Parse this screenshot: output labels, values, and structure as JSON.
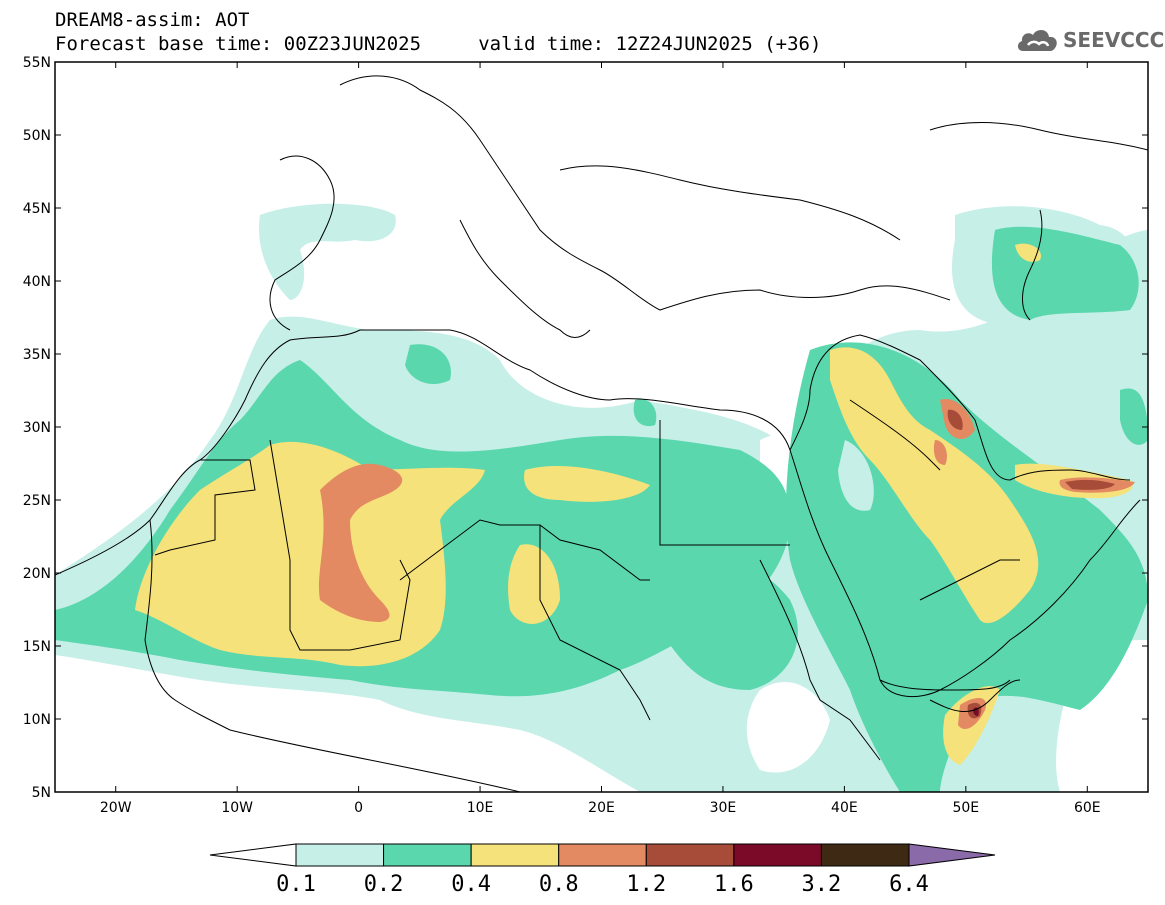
{
  "header": {
    "model_line": "DREAM8-assim: AOT",
    "time_line": "Forecast base time: 00Z23JUN2025     valid time: 12Z24JUN2025 (+36)"
  },
  "logo": {
    "text": "SEEVCCC",
    "icon": "cloud-icon"
  },
  "map": {
    "region": "North Africa, Mediterranean, Middle East",
    "lon_range": [
      -25,
      65
    ],
    "lat_range": [
      5,
      55
    ],
    "lat_ticks": [
      "55N",
      "50N",
      "45N",
      "40N",
      "35N",
      "30N",
      "25N",
      "20N",
      "15N",
      "10N",
      "5N"
    ],
    "lon_ticks": [
      "20W",
      "10W",
      "0",
      "10E",
      "20E",
      "30E",
      "40E",
      "50E",
      "60E"
    ]
  },
  "colorbar": {
    "labels": [
      "0.1",
      "0.2",
      "0.4",
      "0.8",
      "1.2",
      "1.6",
      "3.2",
      "6.4"
    ],
    "colors": [
      "#ffffff",
      "#c6efe8",
      "#5ad7ad",
      "#f5e27a",
      "#e48a62",
      "#a84c3a",
      "#7a0a28",
      "#3e2a14",
      "#8a6aa8"
    ]
  },
  "colors": {
    "light_teal": "#c6efe8",
    "teal": "#5ad7ad",
    "yellow": "#f5e27a",
    "orange": "#e48a62",
    "brown_red": "#a84c3a",
    "dark_red": "#7a0a28"
  }
}
